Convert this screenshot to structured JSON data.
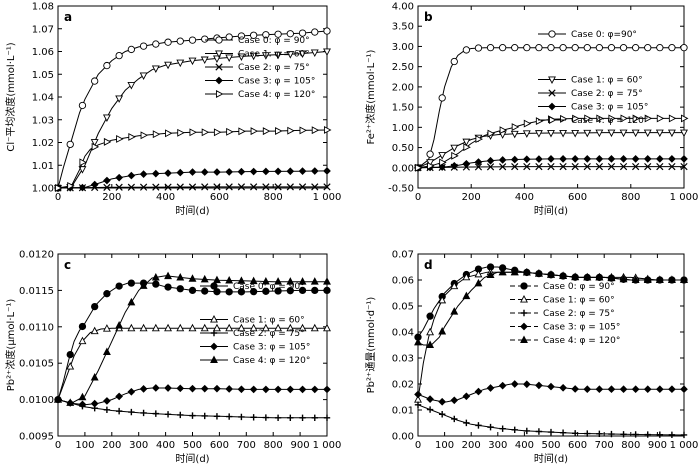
{
  "chart_data": [
    {
      "type": "line",
      "panel_label": "a",
      "xlabel": "时间(d)",
      "ylabel": "Cl⁻平均浓度(mmol·L⁻¹)",
      "xlim": [
        0,
        1000
      ],
      "ylim": [
        1.0,
        1.08
      ],
      "xticks": [
        "0",
        "200",
        "400",
        "600",
        "800",
        "1 000"
      ],
      "xtick_values": [
        0,
        200,
        400,
        600,
        800,
        1000
      ],
      "yticks": [
        "1.00",
        "1.01",
        "1.02",
        "1.03",
        "1.04",
        "1.05",
        "1.06",
        "1.07",
        "1.08"
      ],
      "ytick_values": [
        1.0,
        1.01,
        1.02,
        1.03,
        1.04,
        1.05,
        1.06,
        1.07,
        1.08
      ],
      "legend_position": "right",
      "series": [
        {
          "name": "Case 0: φ = 90°",
          "marker": "circle",
          "x": [
            0,
            20,
            50,
            80,
            100,
            150,
            200,
            250,
            300,
            400,
            500,
            600,
            700,
            800,
            900,
            1000
          ],
          "y": [
            1.0,
            1.009,
            1.021,
            1.033,
            1.039,
            1.05,
            1.056,
            1.06,
            1.062,
            1.064,
            1.065,
            1.066,
            1.067,
            1.0675,
            1.068,
            1.069
          ]
        },
        {
          "name": "Case 1: φ = 60°",
          "marker": "triangle-down",
          "x": [
            0,
            50,
            100,
            150,
            200,
            250,
            300,
            350,
            400,
            500,
            600,
            700,
            800,
            900,
            1000
          ],
          "y": [
            1.0,
            1.0005,
            1.01,
            1.024,
            1.035,
            1.043,
            1.048,
            1.052,
            1.054,
            1.056,
            1.057,
            1.058,
            1.0585,
            1.059,
            1.06
          ]
        },
        {
          "name": "Case 2: φ = 75°",
          "marker": "x",
          "x": [
            0,
            200,
            400,
            600,
            800,
            1000
          ],
          "y": [
            1.0,
            1.0003,
            1.0004,
            1.0005,
            1.0005,
            1.0005
          ]
        },
        {
          "name": "Case 3: φ = 105°",
          "marker": "diamond",
          "x": [
            0,
            100,
            150,
            200,
            250,
            300,
            400,
            500,
            600,
            700,
            800,
            900,
            1000
          ],
          "y": [
            1.0,
            1.0002,
            1.002,
            1.004,
            1.005,
            1.006,
            1.0065,
            1.007,
            1.007,
            1.0072,
            1.0073,
            1.0074,
            1.0075
          ]
        },
        {
          "name": "Case 4: φ = 120°",
          "marker": "triangle-right",
          "x": [
            0,
            50,
            80,
            100,
            120,
            150,
            200,
            250,
            300,
            400,
            500,
            600,
            700,
            800,
            900,
            1000
          ],
          "y": [
            1.0,
            1.001,
            1.008,
            1.014,
            1.017,
            1.019,
            1.021,
            1.022,
            1.023,
            1.024,
            1.0245,
            1.0245,
            1.025,
            1.025,
            1.0253,
            1.0255
          ]
        }
      ]
    },
    {
      "type": "line",
      "panel_label": "b",
      "xlabel": "时间(d)",
      "ylabel": "Fe²⁺浓度(mmol·L⁻¹)",
      "xlim": [
        0,
        1000
      ],
      "ylim": [
        -0.5,
        4.0
      ],
      "xticks": [
        "0",
        "200",
        "400",
        "600",
        "800",
        "1 000"
      ],
      "xtick_values": [
        0,
        200,
        400,
        600,
        800,
        1000
      ],
      "yticks": [
        "-0.50",
        "0.00",
        "0.50",
        "1.00",
        "1.50",
        "2.00",
        "2.50",
        "3.00",
        "3.50",
        "4.00"
      ],
      "ytick_values": [
        -0.5,
        0.0,
        0.5,
        1.0,
        1.5,
        2.0,
        2.5,
        3.0,
        3.5,
        4.0
      ],
      "legend_position": "right",
      "series": [
        {
          "name": "Case 0: φ=90°",
          "marker": "circle",
          "x": [
            0,
            40,
            60,
            80,
            100,
            125,
            150,
            175,
            200,
            250,
            300,
            400,
            500,
            600,
            700,
            800,
            900,
            1000
          ],
          "y": [
            0.0,
            0.2,
            0.7,
            1.4,
            2.0,
            2.5,
            2.78,
            2.9,
            2.95,
            2.97,
            2.97,
            2.97,
            2.97,
            2.97,
            2.97,
            2.97,
            2.97,
            2.97
          ]
        },
        {
          "name": "Case 1: φ = 60°",
          "marker": "triangle-down",
          "x": [
            0,
            50,
            100,
            150,
            200,
            250,
            300,
            400,
            500,
            600,
            700,
            800,
            900,
            1000
          ],
          "y": [
            0.0,
            0.15,
            0.35,
            0.55,
            0.7,
            0.78,
            0.82,
            0.85,
            0.86,
            0.86,
            0.87,
            0.87,
            0.87,
            0.87
          ]
        },
        {
          "name": "Case 2: φ = 75°",
          "marker": "x",
          "x": [
            0,
            100,
            200,
            400,
            600,
            800,
            1000
          ],
          "y": [
            0.0,
            0.01,
            0.02,
            0.03,
            0.03,
            0.03,
            0.03
          ]
        },
        {
          "name": "Case 3: φ = 105°",
          "marker": "diamond",
          "x": [
            0,
            100,
            150,
            200,
            250,
            300,
            400,
            500,
            600,
            700,
            800,
            900,
            1000
          ],
          "y": [
            0.0,
            0.02,
            0.06,
            0.12,
            0.16,
            0.19,
            0.21,
            0.22,
            0.22,
            0.22,
            0.22,
            0.22,
            0.22
          ]
        },
        {
          "name": "Case 4: φ = 120°",
          "marker": "triangle-right",
          "x": [
            0,
            50,
            100,
            150,
            200,
            250,
            300,
            350,
            400,
            450,
            500,
            600,
            700,
            800,
            900,
            1000
          ],
          "y": [
            0.0,
            0.05,
            0.15,
            0.35,
            0.6,
            0.8,
            0.9,
            0.98,
            1.08,
            1.15,
            1.2,
            1.22,
            1.22,
            1.22,
            1.22,
            1.22
          ]
        }
      ]
    },
    {
      "type": "line",
      "panel_label": "c",
      "xlabel": "时间(d)",
      "ylabel": "Pb²⁺浓度(μmol·L⁻¹)",
      "xlim": [
        0,
        1000
      ],
      "ylim": [
        0.0095,
        0.012
      ],
      "xticks": [
        "0",
        "100",
        "200",
        "300",
        "400",
        "500",
        "600",
        "700",
        "800",
        "900",
        "1 000"
      ],
      "xtick_values": [
        0,
        100,
        200,
        300,
        400,
        500,
        600,
        700,
        800,
        900,
        1000
      ],
      "yticks": [
        "0.0095",
        "0.0100",
        "0.0105",
        "0.0110",
        "0.0115",
        "0.0120"
      ],
      "ytick_values": [
        0.0095,
        0.01,
        0.0105,
        0.011,
        0.0115,
        0.012
      ],
      "legend_position": "right",
      "series": [
        {
          "name": "Case 0: φ = 90°",
          "marker": "filled-circle",
          "x": [
            0,
            20,
            40,
            60,
            80,
            100,
            140,
            180,
            220,
            260,
            300,
            350,
            400,
            500,
            600,
            700,
            800,
            900,
            1000
          ],
          "y": [
            0.01,
            0.01025,
            0.01055,
            0.0108,
            0.01095,
            0.01105,
            0.0113,
            0.01145,
            0.01155,
            0.0116,
            0.0116,
            0.0116,
            0.01155,
            0.0115,
            0.01148,
            0.01148,
            0.01149,
            0.0115,
            0.0115
          ]
        },
        {
          "name": "Case 1: φ = 60°",
          "marker": "open-triangle",
          "x": [
            0,
            30,
            60,
            90,
            120,
            160,
            200,
            250,
            300,
            400,
            500,
            600,
            700,
            800,
            900,
            1000
          ],
          "y": [
            0.01,
            0.0103,
            0.0106,
            0.0108,
            0.01092,
            0.01097,
            0.01098,
            0.01098,
            0.01098,
            0.01098,
            0.01098,
            0.01098,
            0.01098,
            0.01098,
            0.01098,
            0.01098
          ]
        },
        {
          "name": "Case 2: φ = 75°",
          "marker": "plus",
          "x": [
            0,
            100,
            200,
            300,
            400,
            500,
            600,
            700,
            800,
            900,
            1000
          ],
          "y": [
            0.01,
            0.0099,
            0.00985,
            0.00982,
            0.0098,
            0.00978,
            0.00977,
            0.00976,
            0.00975,
            0.00975,
            0.00975
          ]
        },
        {
          "name": "Case 3: φ = 105°",
          "marker": "filled-diamond",
          "x": [
            0,
            50,
            100,
            150,
            200,
            250,
            300,
            350,
            400,
            500,
            600,
            700,
            800,
            900,
            1000
          ],
          "y": [
            0.01,
            0.00995,
            0.00993,
            0.00995,
            0.01,
            0.01008,
            0.01014,
            0.01016,
            0.01016,
            0.01015,
            0.01015,
            0.01014,
            0.01014,
            0.01014,
            0.01014
          ]
        },
        {
          "name": "Case 4: φ = 120°",
          "marker": "filled-triangle",
          "x": [
            0,
            50,
            100,
            150,
            200,
            250,
            300,
            350,
            400,
            450,
            500,
            600,
            700,
            800,
            900,
            1000
          ],
          "y": [
            0.01,
            0.00995,
            0.01005,
            0.0104,
            0.0108,
            0.0112,
            0.0115,
            0.01167,
            0.0117,
            0.01168,
            0.01166,
            0.01164,
            0.01163,
            0.01162,
            0.01162,
            0.01162
          ]
        }
      ]
    },
    {
      "type": "line",
      "panel_label": "d",
      "xlabel": "时间(d)",
      "ylabel": "Pb²⁺通量(mmol·d⁻¹)",
      "xlim": [
        0,
        1000
      ],
      "ylim": [
        0.0,
        0.07
      ],
      "xticks": [
        "0",
        "100",
        "200",
        "300",
        "400",
        "500",
        "600",
        "700",
        "800",
        "900",
        "1 000"
      ],
      "xtick_values": [
        0,
        100,
        200,
        300,
        400,
        500,
        600,
        700,
        800,
        900,
        1000
      ],
      "yticks": [
        "0.00",
        "0.01",
        "0.02",
        "0.03",
        "0.04",
        "0.05",
        "0.06",
        "0.07"
      ],
      "ytick_values": [
        0.0,
        0.01,
        0.02,
        0.03,
        0.04,
        0.05,
        0.06,
        0.07
      ],
      "legend_position": "right",
      "series": [
        {
          "name": "Case 0: φ = 90°",
          "marker": "filled-circle",
          "x": [
            0,
            20,
            40,
            60,
            80,
            100,
            140,
            180,
            220,
            260,
            300,
            400,
            500,
            600,
            700,
            800,
            900,
            1000
          ],
          "y": [
            0.038,
            0.041,
            0.045,
            0.049,
            0.052,
            0.055,
            0.059,
            0.062,
            0.064,
            0.065,
            0.065,
            0.063,
            0.062,
            0.061,
            0.061,
            0.06,
            0.06,
            0.06
          ]
        },
        {
          "name": "Case 1: φ = 60°",
          "marker": "open-triangle",
          "x": [
            0,
            20,
            40,
            60,
            80,
            100,
            140,
            180,
            220,
            260,
            300,
            400,
            500,
            600,
            700,
            800,
            900,
            1000
          ],
          "y": [
            0.014,
            0.028,
            0.038,
            0.045,
            0.05,
            0.054,
            0.058,
            0.061,
            0.062,
            0.063,
            0.063,
            0.063,
            0.062,
            0.061,
            0.061,
            0.061,
            0.06,
            0.06
          ]
        },
        {
          "name": "Case 2: φ = 75°",
          "marker": "plus",
          "x": [
            0,
            50,
            100,
            150,
            200,
            300,
            400,
            500,
            600,
            700,
            800,
            900,
            1000
          ],
          "y": [
            0.012,
            0.01,
            0.008,
            0.006,
            0.0045,
            0.003,
            0.002,
            0.0015,
            0.001,
            0.0008,
            0.0006,
            0.0005,
            0.0004
          ]
        },
        {
          "name": "Case 3: φ = 105°",
          "marker": "filled-diamond",
          "x": [
            0,
            50,
            100,
            150,
            200,
            250,
            300,
            350,
            400,
            500,
            600,
            700,
            800,
            900,
            1000
          ],
          "y": [
            0.016,
            0.014,
            0.013,
            0.014,
            0.016,
            0.018,
            0.019,
            0.02,
            0.02,
            0.019,
            0.018,
            0.018,
            0.018,
            0.018,
            0.018
          ]
        },
        {
          "name": "Case 4: φ = 120°",
          "marker": "filled-triangle",
          "x": [
            0,
            20,
            50,
            80,
            100,
            150,
            200,
            250,
            300,
            350,
            400,
            500,
            600,
            700,
            800,
            900,
            1000
          ],
          "y": [
            0.036,
            0.035,
            0.035,
            0.038,
            0.042,
            0.05,
            0.056,
            0.061,
            0.063,
            0.063,
            0.063,
            0.062,
            0.061,
            0.061,
            0.06,
            0.06,
            0.06
          ]
        }
      ]
    }
  ]
}
